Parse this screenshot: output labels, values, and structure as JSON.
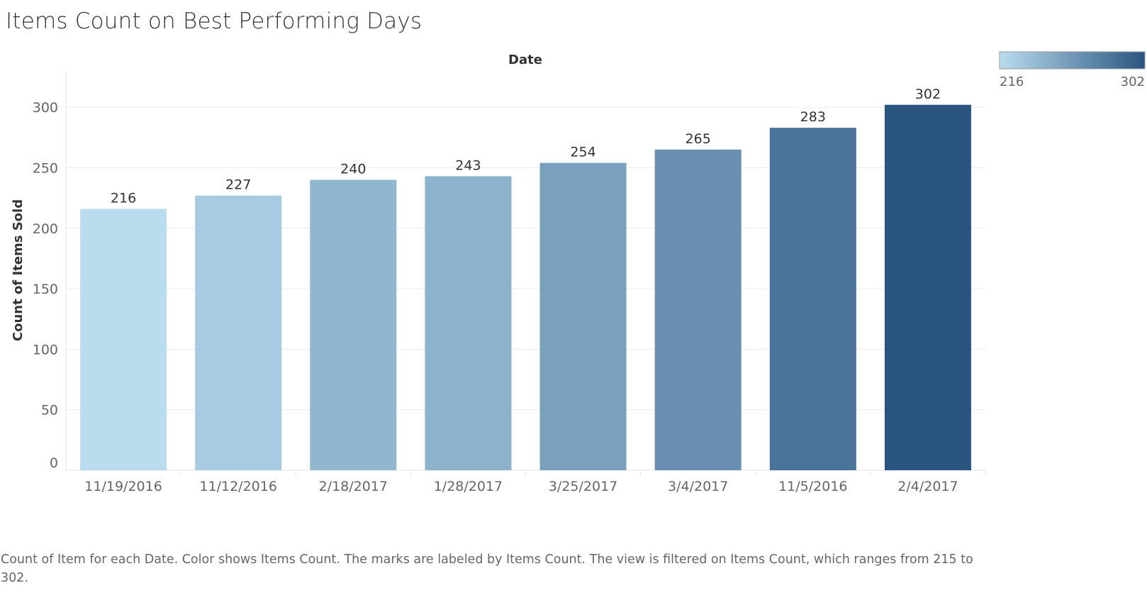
{
  "title": "Items Count on Best Performing Days",
  "caption": "Count of Item for each Date.  Color shows Items Count.  The marks are labeled by Items Count. The view is filtered on Items Count, which ranges from 215 to 302.",
  "legend": {
    "min_label": "216",
    "max_label": "302",
    "min_color": "#b9dcef",
    "max_color": "#2a5580"
  },
  "chart_data": {
    "type": "bar",
    "title": "Items Count on Best Performing Days",
    "xlabel": "Date",
    "ylabel": "Count of Items Sold",
    "categories": [
      "11/19/2016",
      "11/12/2016",
      "2/18/2017",
      "1/28/2017",
      "3/25/2017",
      "3/4/2017",
      "11/5/2016",
      "2/4/2017"
    ],
    "values": [
      216,
      227,
      240,
      243,
      254,
      265,
      283,
      302
    ],
    "value_labels": [
      "216",
      "227",
      "240",
      "243",
      "254",
      "265",
      "283",
      "302"
    ],
    "yticks": [
      0,
      50,
      100,
      150,
      200,
      250,
      300
    ],
    "ytick_labels": [
      "0",
      "50",
      "100",
      "150",
      "200",
      "250",
      "300"
    ],
    "ylim": [
      0,
      330
    ],
    "grid": true,
    "legend_position": "top-right",
    "color_range": [
      216,
      302
    ]
  }
}
